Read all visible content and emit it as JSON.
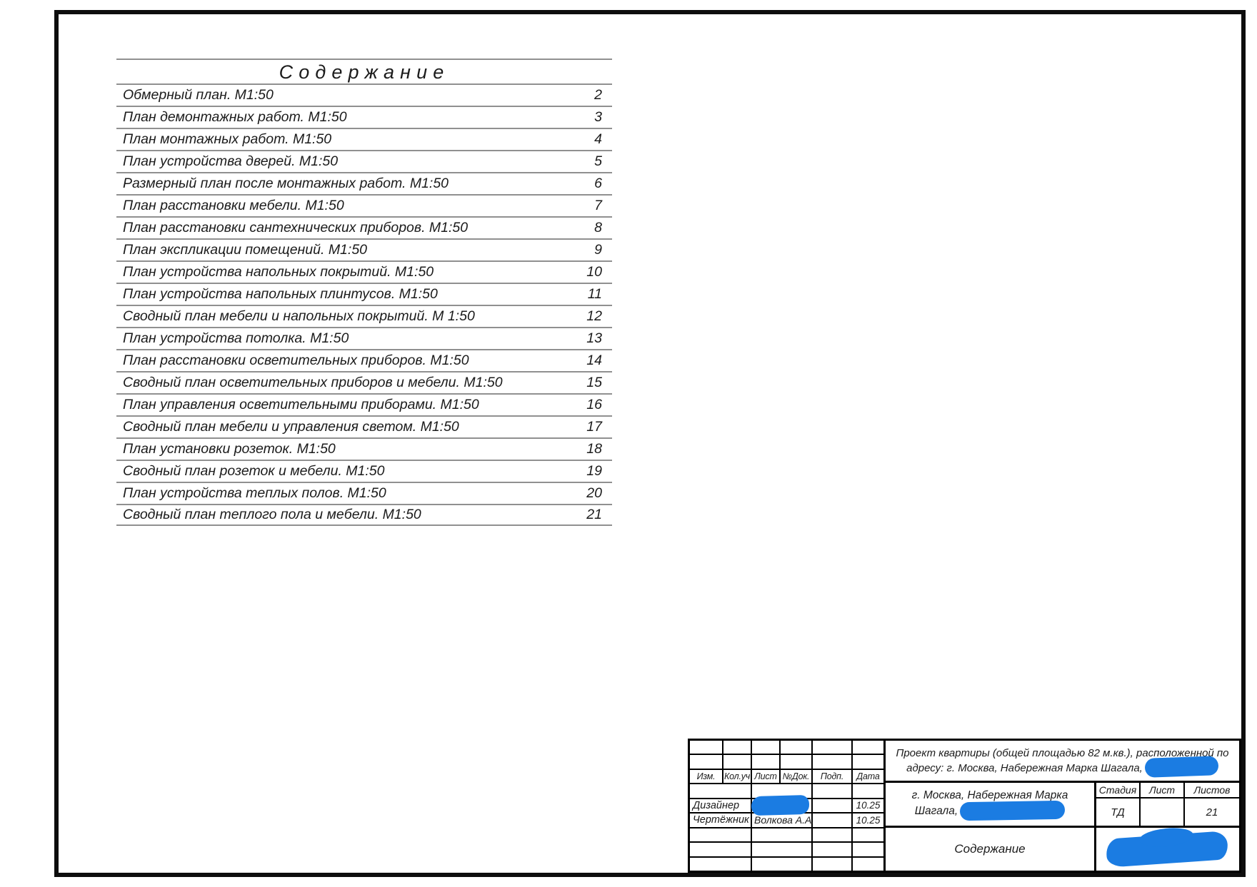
{
  "toc": {
    "title": "Содержание",
    "entries": [
      {
        "label": "Обмерный план. М1:50",
        "page": "2"
      },
      {
        "label": "План демонтажных работ. М1:50",
        "page": "3"
      },
      {
        "label": "План монтажных работ. М1:50",
        "page": "4"
      },
      {
        "label": "План устройства дверей. М1:50",
        "page": "5"
      },
      {
        "label": "Размерный план после монтажных работ. М1:50",
        "page": "6"
      },
      {
        "label": "План расстановки мебели. М1:50",
        "page": "7"
      },
      {
        "label": "План расстановки сантехнических приборов. М1:50",
        "page": "8"
      },
      {
        "label": "План экспликации помещений. М1:50",
        "page": "9"
      },
      {
        "label": "План устройства напольных покрытий. М1:50",
        "page": "10"
      },
      {
        "label": "План устройства напольных плинтусов. М1:50",
        "page": "11"
      },
      {
        "label": "Сводный план мебели и напольных покрытий. М 1:50",
        "page": "12"
      },
      {
        "label": "План устройства потолка. М1:50",
        "page": "13"
      },
      {
        "label": "План расстановки осветительных приборов. М1:50",
        "page": "14"
      },
      {
        "label": "Сводный план осветительных приборов и мебели. М1:50",
        "page": "15"
      },
      {
        "label": "План управления осветительными приборами. М1:50",
        "page": "16"
      },
      {
        "label": "Сводный план мебели и управления светом. М1:50",
        "page": "17"
      },
      {
        "label": "План установки розеток. М1:50",
        "page": "18"
      },
      {
        "label": "Сводный план розеток и мебели. М1:50",
        "page": "19"
      },
      {
        "label": "План устройства теплых полов. М1:50",
        "page": "20"
      },
      {
        "label": "Сводный план теплого пола и мебели. М1:50",
        "page": "21"
      }
    ]
  },
  "title_block": {
    "revision_headers": {
      "izm": "Изм.",
      "koluch": "Кол.уч",
      "list": "Лист",
      "ndok": "№Док.",
      "podp": "Подп.",
      "data": "Дата"
    },
    "signatures": [
      {
        "role": "Дизайнер",
        "name": "",
        "date": "10.25"
      },
      {
        "role": "Чертёжник",
        "name": "Волкова А.А.",
        "date": "10.25"
      }
    ],
    "project_description_line1": "Проект квартиры (общей площадью 82 м.кв.), расположенной по",
    "project_description_line2": "адресу: г. Москва, Набережная Марка Шагала,",
    "address_line1": "г. Москва, Набережная Марка",
    "address_line2": "Шагала,",
    "stage_header": "Стадия",
    "sheet_header": "Лист",
    "sheets_header": "Листов",
    "stage_value": "ТД",
    "sheet_value": "",
    "sheets_value": "21",
    "doc_title": "Содержание"
  },
  "colors": {
    "redaction_blue": "#1b7ce2",
    "toc_line_gray": "#909090",
    "frame_black": "#0d0d0d"
  }
}
